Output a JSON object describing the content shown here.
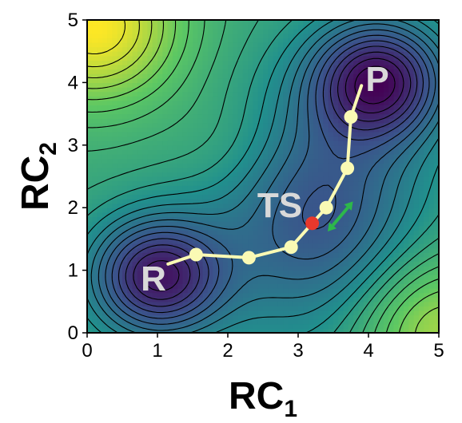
{
  "chart_data": {
    "type": "contour",
    "xlabel": "RC",
    "xlabel_sub": "1",
    "ylabel": "RC",
    "ylabel_sub": "2",
    "xlim": [
      0,
      5
    ],
    "ylim": [
      0,
      5
    ],
    "x_ticks": [
      "0",
      "1",
      "2",
      "3",
      "4",
      "5"
    ],
    "y_ticks": [
      "0",
      "1",
      "2",
      "3",
      "4",
      "5"
    ],
    "colormap": [
      "#440154",
      "#3b528b",
      "#21908d",
      "#5dc863",
      "#fde725"
    ],
    "minima": [
      {
        "label": "R",
        "x": 1.0,
        "y": 0.9
      },
      {
        "label": "P",
        "x": 4.15,
        "y": 4.05
      }
    ],
    "transition_state": {
      "label": "TS",
      "x": 3.2,
      "y": 1.75,
      "color": "#e8382c"
    },
    "path": {
      "color": "#fafab4",
      "x": [
        1.15,
        1.55,
        2.3,
        2.9,
        3.2,
        3.4,
        3.7,
        3.75,
        3.9
      ],
      "y": [
        1.1,
        1.25,
        1.2,
        1.37,
        1.75,
        2.0,
        2.63,
        3.45,
        3.95
      ],
      "marker_indices": [
        1,
        2,
        3,
        5,
        6,
        7
      ]
    },
    "unstable_direction_arrow": {
      "color": "#2db84a",
      "x": [
        3.42,
        3.78
      ],
      "y": [
        1.62,
        2.1
      ]
    }
  }
}
